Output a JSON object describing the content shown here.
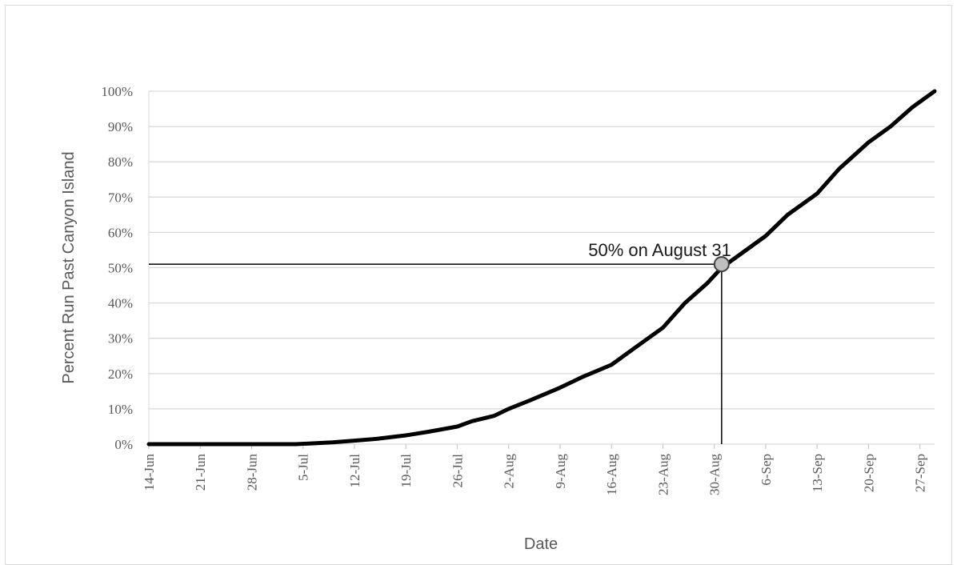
{
  "chart_data": {
    "type": "line",
    "xlabel": "Date",
    "ylabel": "Percent Run Past Canyon Island",
    "ylim": [
      0,
      100
    ],
    "y_ticks": [
      "0%",
      "10%",
      "20%",
      "30%",
      "40%",
      "50%",
      "60%",
      "70%",
      "80%",
      "90%",
      "100%"
    ],
    "x_ticks": [
      "14-Jun",
      "21-Jun",
      "28-Jun",
      "5-Jul",
      "12-Jul",
      "19-Jul",
      "26-Jul",
      "2-Aug",
      "9-Aug",
      "16-Aug",
      "23-Aug",
      "30-Aug",
      "6-Sep",
      "13-Sep",
      "20-Sep",
      "27-Sep"
    ],
    "x_range": [
      "2000-06-14",
      "2000-09-29"
    ],
    "grid": true,
    "series": [
      {
        "color": "#000000",
        "points": [
          [
            "2000-06-14",
            0
          ],
          [
            "2000-06-28",
            0
          ],
          [
            "2000-07-04",
            0
          ],
          [
            "2000-07-09",
            0.5
          ],
          [
            "2000-07-12",
            1
          ],
          [
            "2000-07-15",
            1.5
          ],
          [
            "2000-07-19",
            2.5
          ],
          [
            "2000-07-22",
            3.5
          ],
          [
            "2000-07-26",
            5
          ],
          [
            "2000-07-28",
            6.5
          ],
          [
            "2000-07-31",
            8
          ],
          [
            "2000-08-02",
            10
          ],
          [
            "2000-08-05",
            12.5
          ],
          [
            "2000-08-09",
            16
          ],
          [
            "2000-08-12",
            19
          ],
          [
            "2000-08-16",
            22.5
          ],
          [
            "2000-08-19",
            27
          ],
          [
            "2000-08-23",
            33
          ],
          [
            "2000-08-26",
            40
          ],
          [
            "2000-08-29",
            45.5
          ],
          [
            "2000-08-31",
            50
          ],
          [
            "2000-09-02",
            53
          ],
          [
            "2000-09-06",
            59
          ],
          [
            "2000-09-09",
            65
          ],
          [
            "2000-09-13",
            71
          ],
          [
            "2000-09-16",
            78
          ],
          [
            "2000-09-20",
            85.5
          ],
          [
            "2000-09-23",
            90
          ],
          [
            "2000-09-26",
            95.5
          ],
          [
            "2000-09-29",
            100
          ]
        ]
      }
    ],
    "annotation": {
      "text": "50% on August 31",
      "x": "2000-08-31",
      "y": 51
    }
  }
}
